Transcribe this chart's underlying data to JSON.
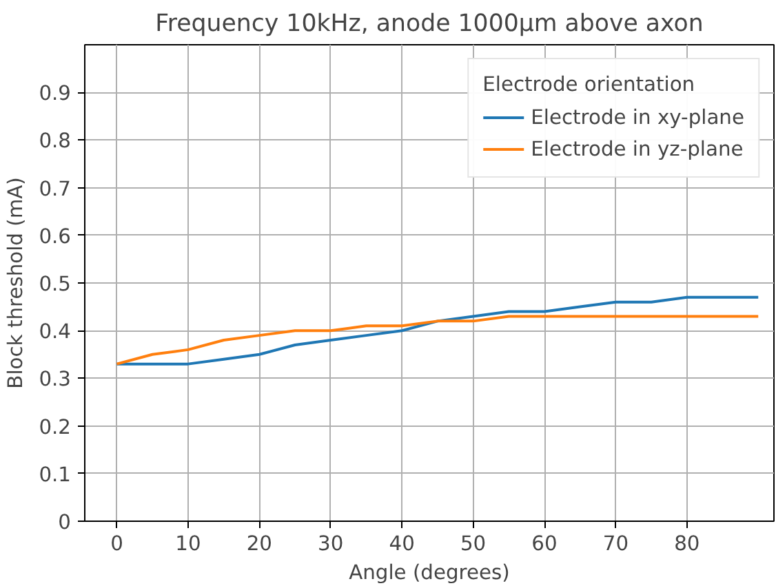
{
  "chart_data": {
    "type": "line",
    "title": "Frequency 10kHz, anode 1000μm above axon",
    "xlabel": "Angle (degrees)",
    "ylabel": "Block threshold (mA)",
    "legend_title": "Electrode orientation",
    "x": [
      0,
      5,
      10,
      15,
      20,
      25,
      30,
      35,
      40,
      45,
      50,
      55,
      60,
      65,
      70,
      75,
      80,
      85,
      90
    ],
    "series": [
      {
        "name": "Electrode in xy-plane",
        "color": "#1f77b4",
        "values": [
          0.33,
          0.33,
          0.33,
          0.34,
          0.35,
          0.37,
          0.38,
          0.39,
          0.4,
          0.42,
          0.43,
          0.44,
          0.44,
          0.45,
          0.46,
          0.46,
          0.47,
          0.47,
          0.47
        ]
      },
      {
        "name": "Electrode in yz-plane",
        "color": "#ff7f0e",
        "values": [
          0.33,
          0.35,
          0.36,
          0.38,
          0.39,
          0.4,
          0.4,
          0.41,
          0.41,
          0.42,
          0.42,
          0.43,
          0.43,
          0.43,
          0.43,
          0.43,
          0.43,
          0.43,
          0.43
        ]
      }
    ],
    "xlim": [
      -4.5,
      92.2
    ],
    "ylim": [
      0,
      1.0
    ],
    "xticks": [
      0,
      10,
      20,
      30,
      40,
      50,
      60,
      70,
      80
    ],
    "yticks": [
      0.0,
      0.1,
      0.2,
      0.3,
      0.4,
      0.5,
      0.6,
      0.7,
      0.8,
      0.9
    ],
    "grid": true,
    "legend": "top right",
    "marker": "none",
    "line_style": "solid"
  }
}
